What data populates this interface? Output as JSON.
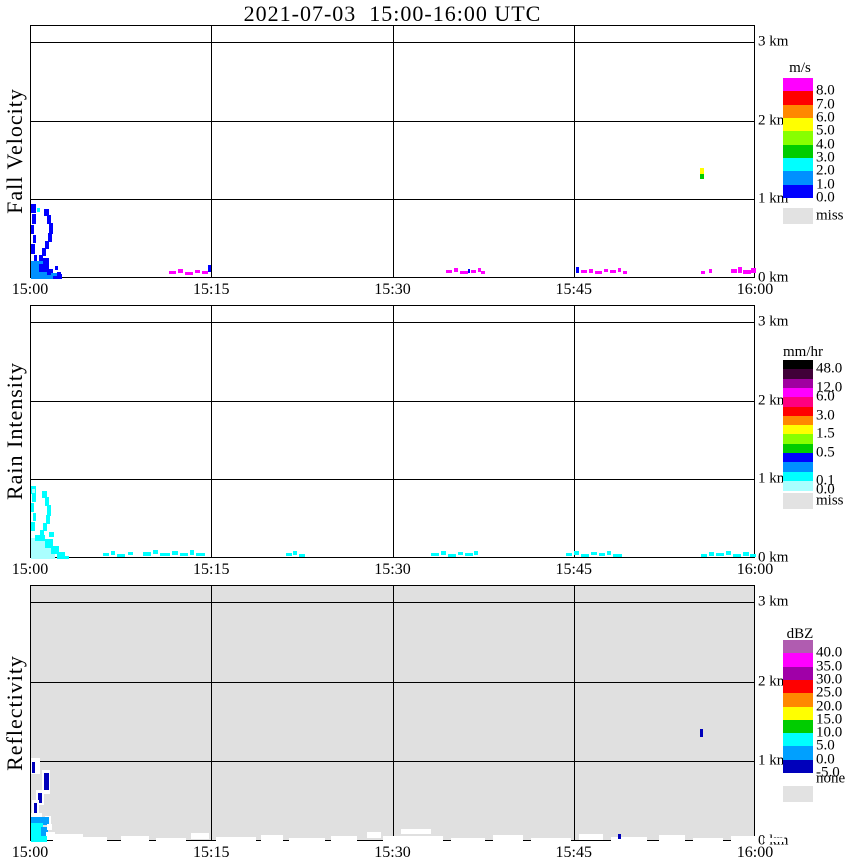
{
  "title": "2021-07-03  15:00-16:00 UTC",
  "chart_data": {
    "type": "heatmap",
    "description": "Micro rain radar time-height profiles, three stacked panels sharing a time axis",
    "time_axis": {
      "start": "15:00",
      "end": "16:00",
      "ticks": [
        "15:00",
        "15:15",
        "15:30",
        "15:45",
        "16:00"
      ]
    },
    "height_axis": {
      "ticks": [
        "3 km",
        "2 km",
        "1 km",
        "0 km"
      ],
      "range_km": [
        0,
        3.2
      ]
    },
    "palette": {
      "B": "#0000FF",
      "D": "#0090FF",
      "C": "#00FFFF",
      "P": "#AAFFFF",
      "M": "#FF00FF",
      "Y": "#FFFF00",
      "G": "#00CC00",
      "N": "#0000BB",
      "W": "#FFFFFF",
      "L": "#00A0FF"
    },
    "panels": [
      {
        "id": "fall-velocity",
        "ylabel": "Fall Velocity",
        "background": "#FFFFFF",
        "legend": {
          "unit": "m/s",
          "colors": [
            "#FF00FF",
            "#FF0000",
            "#FF8800",
            "#FFFF00",
            "#88FF00",
            "#00CC00",
            "#00FFFF",
            "#0090FF",
            "#0000FF"
          ],
          "labels": [
            [
              "8.0",
              1
            ],
            [
              "7.0",
              2
            ],
            [
              "6.0",
              3
            ],
            [
              "5.0",
              4
            ],
            [
              "4.0",
              5
            ],
            [
              "3.0",
              6
            ],
            [
              "2.0",
              7
            ],
            [
              "1.0",
              8
            ],
            [
              "0.0",
              9
            ]
          ],
          "nodata": {
            "label": "miss",
            "color": "#E2E2E2"
          }
        },
        "cells": [
          [
            0,
            178,
            5,
            9,
            "B"
          ],
          [
            1,
            188,
            4,
            10,
            "B"
          ],
          [
            0,
            199,
            3,
            9,
            "B"
          ],
          [
            2,
            209,
            3,
            8,
            "B"
          ],
          [
            0,
            218,
            4,
            10,
            "B"
          ],
          [
            3,
            229,
            3,
            6,
            "B"
          ],
          [
            6,
            182,
            3,
            4,
            "C"
          ],
          [
            13,
            183,
            5,
            7,
            "B"
          ],
          [
            16,
            189,
            4,
            9,
            "B"
          ],
          [
            18,
            197,
            4,
            11,
            "B"
          ],
          [
            17,
            207,
            4,
            9,
            "B"
          ],
          [
            14,
            215,
            4,
            8,
            "B"
          ],
          [
            11,
            222,
            4,
            8,
            "B"
          ],
          [
            8,
            229,
            4,
            7,
            "B"
          ],
          [
            0,
            235,
            12,
            18,
            "D"
          ],
          [
            8,
            238,
            10,
            15,
            "B"
          ],
          [
            0,
            246,
            22,
            7,
            "D"
          ],
          [
            16,
            243,
            6,
            6,
            "B"
          ],
          [
            20,
            247,
            7,
            6,
            "D"
          ],
          [
            12,
            232,
            6,
            6,
            "B"
          ],
          [
            22,
            250,
            6,
            3,
            "B"
          ],
          [
            26,
            246,
            4,
            4,
            "B"
          ],
          [
            28,
            248,
            3,
            5,
            "B"
          ],
          [
            24,
            240,
            3,
            4,
            "B"
          ],
          [
            138,
            245,
            7,
            3,
            "M"
          ],
          [
            147,
            243,
            5,
            4,
            "M"
          ],
          [
            154,
            246,
            8,
            3,
            "M"
          ],
          [
            164,
            244,
            5,
            3,
            "M"
          ],
          [
            171,
            245,
            6,
            3,
            "M"
          ],
          [
            177,
            239,
            3,
            7,
            "B"
          ],
          [
            415,
            244,
            6,
            3,
            "M"
          ],
          [
            423,
            242,
            4,
            4,
            "M"
          ],
          [
            429,
            245,
            8,
            3,
            "M"
          ],
          [
            437,
            243,
            2,
            4,
            "B"
          ],
          [
            440,
            244,
            5,
            3,
            "M"
          ],
          [
            447,
            242,
            3,
            4,
            "M"
          ],
          [
            450,
            245,
            4,
            3,
            "M"
          ],
          [
            545,
            241,
            3,
            6,
            "B"
          ],
          [
            550,
            244,
            6,
            3,
            "M"
          ],
          [
            558,
            243,
            4,
            4,
            "M"
          ],
          [
            564,
            245,
            7,
            3,
            "M"
          ],
          [
            573,
            243,
            4,
            3,
            "M"
          ],
          [
            579,
            244,
            6,
            3,
            "M"
          ],
          [
            587,
            242,
            3,
            4,
            "M"
          ],
          [
            592,
            245,
            4,
            3,
            "M"
          ],
          [
            670,
            245,
            4,
            3,
            "M"
          ],
          [
            678,
            243,
            3,
            4,
            "M"
          ],
          [
            700,
            243,
            6,
            4,
            "M"
          ],
          [
            707,
            241,
            4,
            6,
            "M"
          ],
          [
            712,
            244,
            8,
            4,
            "M"
          ],
          [
            720,
            242,
            5,
            5,
            "M"
          ],
          [
            669,
            142,
            4,
            6,
            "Y"
          ],
          [
            669,
            148,
            4,
            5,
            "G"
          ]
        ]
      },
      {
        "id": "rain-intensity",
        "ylabel": "Rain Intensity",
        "background": "#FFFFFF",
        "legend": {
          "unit": "mm/hr",
          "colors": [
            "#000000",
            "#400038",
            "#A000A0",
            "#FF00FF",
            "#FF0080",
            "#FF0000",
            "#FF8800",
            "#FFFF00",
            "#88FF00",
            "#00CC00",
            "#0000FF",
            "#0090FF",
            "#00FFFF",
            "#AAFFFF"
          ],
          "labels": [
            [
              "48.0",
              1
            ],
            [
              "12.0",
              3
            ],
            [
              "6.0",
              4
            ],
            [
              "3.0",
              6
            ],
            [
              "1.5",
              8
            ],
            [
              "0.5",
              10
            ],
            [
              "0.1",
              13
            ],
            [
              "0.0",
              14
            ]
          ],
          "nodata": {
            "label": "miss",
            "color": "#E2E2E2"
          }
        },
        "cells": [
          [
            0,
            180,
            5,
            8,
            "C"
          ],
          [
            1,
            187,
            4,
            9,
            "C"
          ],
          [
            0,
            197,
            3,
            9,
            "C"
          ],
          [
            2,
            207,
            3,
            8,
            "C"
          ],
          [
            0,
            216,
            4,
            9,
            "C"
          ],
          [
            1,
            183,
            3,
            4,
            "P"
          ],
          [
            11,
            185,
            5,
            7,
            "C"
          ],
          [
            14,
            191,
            4,
            9,
            "C"
          ],
          [
            16,
            199,
            4,
            11,
            "C"
          ],
          [
            15,
            209,
            4,
            9,
            "C"
          ],
          [
            12,
            217,
            4,
            8,
            "C"
          ],
          [
            9,
            224,
            4,
            7,
            "C"
          ],
          [
            0,
            232,
            14,
            21,
            "P"
          ],
          [
            8,
            236,
            12,
            17,
            "P"
          ],
          [
            4,
            229,
            10,
            6,
            "C"
          ],
          [
            14,
            233,
            8,
            9,
            "C"
          ],
          [
            20,
            240,
            8,
            8,
            "C"
          ],
          [
            26,
            246,
            8,
            7,
            "C"
          ],
          [
            0,
            248,
            24,
            5,
            "P"
          ],
          [
            18,
            226,
            5,
            5,
            "C"
          ],
          [
            30,
            250,
            8,
            3,
            "C"
          ],
          [
            72,
            247,
            6,
            3,
            "C"
          ],
          [
            80,
            245,
            4,
            4,
            "C"
          ],
          [
            86,
            248,
            8,
            3,
            "C"
          ],
          [
            97,
            246,
            5,
            3,
            "C"
          ],
          [
            112,
            246,
            8,
            4,
            "C"
          ],
          [
            122,
            244,
            5,
            4,
            "C"
          ],
          [
            129,
            247,
            10,
            3,
            "C"
          ],
          [
            141,
            245,
            6,
            4,
            "C"
          ],
          [
            149,
            247,
            8,
            3,
            "C"
          ],
          [
            159,
            244,
            4,
            5,
            "C"
          ],
          [
            165,
            247,
            9,
            3,
            "C"
          ],
          [
            255,
            247,
            6,
            3,
            "C"
          ],
          [
            262,
            245,
            4,
            4,
            "C"
          ],
          [
            268,
            248,
            6,
            3,
            "C"
          ],
          [
            400,
            247,
            8,
            3,
            "C"
          ],
          [
            410,
            245,
            5,
            4,
            "C"
          ],
          [
            417,
            248,
            8,
            3,
            "C"
          ],
          [
            427,
            246,
            5,
            3,
            "C"
          ],
          [
            434,
            247,
            8,
            3,
            "C"
          ],
          [
            443,
            245,
            4,
            4,
            "C"
          ],
          [
            535,
            247,
            6,
            3,
            "C"
          ],
          [
            543,
            245,
            5,
            4,
            "C"
          ],
          [
            550,
            248,
            8,
            3,
            "C"
          ],
          [
            560,
            246,
            6,
            3,
            "C"
          ],
          [
            568,
            247,
            6,
            3,
            "C"
          ],
          [
            576,
            245,
            4,
            4,
            "C"
          ],
          [
            582,
            248,
            9,
            3,
            "C"
          ],
          [
            670,
            248,
            6,
            3,
            "C"
          ],
          [
            678,
            246,
            5,
            4,
            "C"
          ],
          [
            685,
            247,
            8,
            3,
            "C"
          ],
          [
            695,
            245,
            5,
            4,
            "C"
          ],
          [
            702,
            248,
            8,
            3,
            "C"
          ],
          [
            712,
            246,
            6,
            4,
            "C"
          ],
          [
            719,
            248,
            6,
            3,
            "C"
          ]
        ]
      },
      {
        "id": "reflectivity",
        "ylabel": "Reflectivity",
        "background": "#E0E0E0",
        "legend": {
          "unit": "dBZ",
          "colors": [
            "#B05CB0",
            "#FF00FF",
            "#A000A8",
            "#FF0000",
            "#FF8800",
            "#FFFF00",
            "#00CC00",
            "#00FFFF",
            "#00A0FF",
            "#0000BB"
          ],
          "labels": [
            [
              "40.0",
              1
            ],
            [
              "35.0",
              2
            ],
            [
              "30.0",
              3
            ],
            [
              "25.0",
              4
            ],
            [
              "20.0",
              5
            ],
            [
              "15.0",
              6
            ],
            [
              "10.0",
              7
            ],
            [
              "5.0",
              8
            ],
            [
              "0.0",
              9
            ],
            [
              "-5.0",
              10
            ]
          ],
          "nodata": {
            "label": "none",
            "color": "#E2E2E2"
          }
        },
        "cells": [
          [
            0,
            172,
            9,
            16,
            "W"
          ],
          [
            1,
            176,
            3,
            11,
            "N"
          ],
          [
            11,
            184,
            8,
            24,
            "W"
          ],
          [
            13,
            187,
            5,
            17,
            "N"
          ],
          [
            5,
            204,
            8,
            15,
            "W"
          ],
          [
            7,
            207,
            4,
            10,
            "N"
          ],
          [
            1,
            214,
            7,
            14,
            "W"
          ],
          [
            3,
            217,
            3,
            10,
            "N"
          ],
          [
            0,
            227,
            11,
            12,
            "W"
          ],
          [
            14,
            230,
            6,
            8,
            "W"
          ],
          [
            0,
            231,
            18,
            8,
            "L"
          ],
          [
            0,
            237,
            12,
            16,
            "C"
          ],
          [
            10,
            241,
            7,
            10,
            "L"
          ],
          [
            15,
            246,
            9,
            8,
            "W"
          ],
          [
            0,
            250,
            16,
            6,
            "C"
          ],
          [
            16,
            238,
            5,
            6,
            "W"
          ],
          [
            22,
            248,
            30,
            8,
            "W"
          ],
          [
            50,
            251,
            26,
            5,
            "W"
          ],
          [
            90,
            250,
            28,
            6,
            "W"
          ],
          [
            125,
            252,
            30,
            4,
            "W"
          ],
          [
            160,
            247,
            18,
            6,
            "W"
          ],
          [
            185,
            251,
            40,
            5,
            "W"
          ],
          [
            230,
            249,
            22,
            7,
            "W"
          ],
          [
            258,
            252,
            36,
            4,
            "W"
          ],
          [
            300,
            250,
            26,
            6,
            "W"
          ],
          [
            336,
            246,
            14,
            6,
            "W"
          ],
          [
            352,
            250,
            60,
            6,
            "W"
          ],
          [
            370,
            243,
            30,
            5,
            "W"
          ],
          [
            420,
            252,
            34,
            4,
            "W"
          ],
          [
            462,
            249,
            30,
            7,
            "W"
          ],
          [
            500,
            252,
            40,
            4,
            "W"
          ],
          [
            548,
            248,
            24,
            6,
            "W"
          ],
          [
            580,
            251,
            36,
            5,
            "W"
          ],
          [
            628,
            249,
            26,
            7,
            "W"
          ],
          [
            662,
            252,
            30,
            4,
            "W"
          ],
          [
            700,
            250,
            26,
            6,
            "W"
          ],
          [
            733,
            252,
            20,
            4,
            "W"
          ],
          [
            669,
            143,
            3,
            8,
            "N"
          ],
          [
            587,
            248,
            3,
            5,
            "N"
          ]
        ]
      }
    ]
  }
}
